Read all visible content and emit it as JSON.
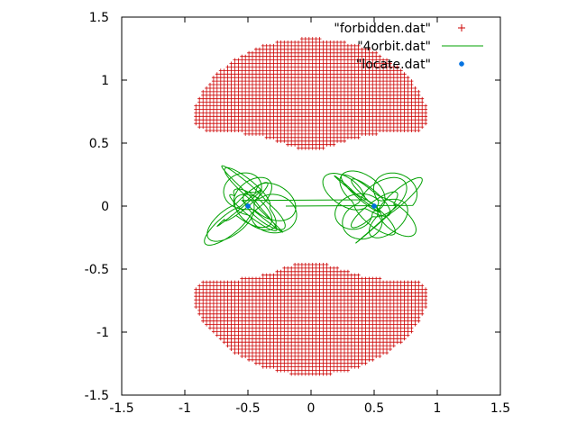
{
  "chart_data": {
    "type": "scatter",
    "title": "",
    "xlabel": "",
    "ylabel": "",
    "xlim": [
      -1.5,
      1.5
    ],
    "ylim": [
      -1.5,
      1.5
    ],
    "x_ticks": [
      "-1.5",
      "-1",
      "-0.5",
      "0",
      "0.5",
      "1",
      "1.5"
    ],
    "y_ticks": [
      "1.5",
      "1",
      "0.5",
      "0",
      "-0.5",
      "-1",
      "-1.5"
    ],
    "grid": false,
    "legend_position": "top-right",
    "series": [
      {
        "name": "\"forbidden.dat\"",
        "style": "points-plus",
        "color": "#cc0000",
        "description_region": "disk of radius ~1.4 centered near (0,0) minus two overlapping lobes around the masses"
      },
      {
        "name": "\"4orbit.dat\"",
        "style": "line",
        "color": "#00a000"
      },
      {
        "name": "\"locate.dat\"",
        "style": "points-star",
        "color": "#0070e0",
        "points": [
          [
            -0.5,
            0.0
          ],
          [
            0.5,
            0.0
          ]
        ]
      }
    ],
    "region": {
      "outer_radius": 1.38,
      "outer_center": [
        0.0,
        -0.05
      ],
      "mass_positions": [
        [
          -0.5,
          0.0
        ],
        [
          0.5,
          0.0
        ]
      ]
    }
  },
  "colors": {
    "forbidden": "#cc0000",
    "orbit": "#00a000",
    "locate": "#0070e0",
    "axis": "#000000"
  }
}
